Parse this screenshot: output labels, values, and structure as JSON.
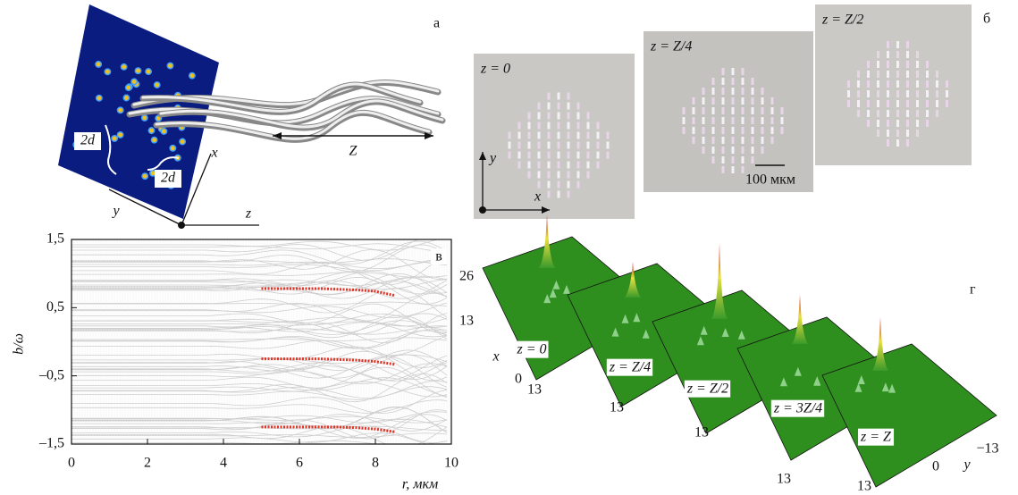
{
  "chart_data": {
    "type": "line",
    "panel_label": "в",
    "xlabel": "r, мкм",
    "ylabel": "b/ω",
    "xlim": [
      0,
      10
    ],
    "ylim": [
      -1.5,
      1.5
    ],
    "xticks": [
      0,
      2,
      4,
      6,
      8,
      10
    ],
    "yticks": [
      {
        "value": 1.5,
        "label": "1,5"
      },
      {
        "value": 0.5,
        "label": "0,5"
      },
      {
        "value": -0.5,
        "label": "–0,5"
      },
      {
        "value": -1.5,
        "label": "–1,5"
      }
    ],
    "x": [
      5,
      5.5,
      6,
      6.5,
      7,
      7.5,
      8,
      8.5
    ],
    "series": [
      {
        "color": "#e03326",
        "values": [
          0.78,
          0.78,
          0.78,
          0.78,
          0.77,
          0.76,
          0.74,
          0.68
        ]
      },
      {
        "color": "#e03326",
        "values": [
          -0.25,
          -0.25,
          -0.25,
          -0.25,
          -0.26,
          -0.27,
          -0.29,
          -0.33
        ]
      },
      {
        "color": "#e03326",
        "values": [
          -1.25,
          -1.25,
          -1.25,
          -1.25,
          -1.25,
          -1.26,
          -1.28,
          -1.32
        ]
      }
    ]
  },
  "panel_a": {
    "letter": "а",
    "labels": [
      "2d",
      "2d",
      "x",
      "y",
      "z",
      "Z"
    ]
  },
  "panel_b": {
    "letter": "б",
    "image_labels": [
      "z = 0",
      "z = Z/4",
      "z = Z/2"
    ],
    "scale_bar": "100 мкм",
    "axis_labels": [
      "x",
      "y"
    ]
  },
  "panel_g": {
    "letter": "г",
    "slice_labels": [
      "z = 0",
      "z = Z/4",
      "z = Z/2",
      "z = 3Z/4",
      "z = Z"
    ],
    "axis_labels": [
      "26",
      "13",
      "x",
      "0",
      "13",
      "13",
      "13",
      "13",
      "13",
      "0",
      "−13",
      "y"
    ]
  }
}
